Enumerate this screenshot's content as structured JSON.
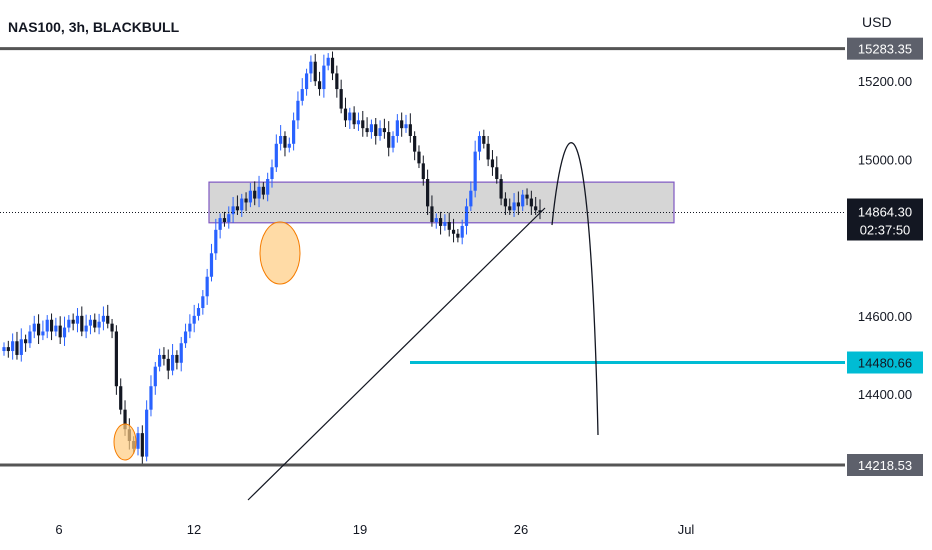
{
  "header": {
    "symbol": "NAS100, 3h, BLACKBULL",
    "currency": "USD"
  },
  "colors": {
    "up": "#2962ff",
    "down": "#131722",
    "zone_fill": "#d6d6d6",
    "zone_border": "#7e57c2",
    "target": "#00bcd4",
    "ellipse_fill": "#ffcc80",
    "ellipse_border": "#f57c00",
    "line": "#131722"
  },
  "chart_data": {
    "type": "candlestick",
    "y_axis": {
      "ticks": [
        "15200.00",
        "15000.00",
        "14600.00",
        "14400.00"
      ],
      "tick_values": [
        15200,
        15000,
        14600,
        14400
      ]
    },
    "x_axis": {
      "ticks": [
        "6",
        "12",
        "19",
        "26",
        "Jul"
      ]
    },
    "price_levels": [
      {
        "label": "15283.35",
        "value": 15283.35,
        "style": "resistance"
      },
      {
        "label": "14218.53",
        "value": 14218.53,
        "style": "support"
      },
      {
        "label": "14480.66",
        "value": 14480.66,
        "style": "target"
      }
    ],
    "current_price": {
      "label": "14864.30",
      "value": 14864.3,
      "countdown": "02:37:50"
    },
    "zone": {
      "top": 14942,
      "bottom": 14838
    },
    "closes": [
      14520,
      14510,
      14535,
      14500,
      14540,
      14530,
      14560,
      14580,
      14550,
      14560,
      14590,
      14560,
      14575,
      14545,
      14570,
      14590,
      14580,
      14600,
      14560,
      14575,
      14590,
      14570,
      14585,
      14600,
      14580,
      14560,
      14420,
      14360,
      14310,
      14280,
      14260,
      14300,
      14240,
      14360,
      14420,
      14470,
      14500,
      14490,
      14460,
      14500,
      14480,
      14530,
      14560,
      14580,
      14600,
      14620,
      14650,
      14700,
      14760,
      14820,
      14850,
      14840,
      14860,
      14880,
      14870,
      14900,
      14890,
      14920,
      14900,
      14930,
      14910,
      14950,
      14980,
      15040,
      15060,
      15030,
      15040,
      15100,
      15150,
      15180,
      15220,
      15250,
      15200,
      15180,
      15240,
      15260,
      15220,
      15180,
      15130,
      15100,
      15120,
      15090,
      15100,
      15080,
      15070,
      15090,
      15060,
      15080,
      15070,
      15030,
      15060,
      15100,
      15080,
      15090,
      15060,
      15020,
      14990,
      14950,
      14880,
      14840,
      14850,
      14830,
      14840,
      14820,
      14810,
      14800,
      14830,
      14880,
      14920,
      15020,
      15060,
      15040,
      15000,
      14980,
      14950,
      14900,
      14880,
      14870,
      14890,
      14880,
      14910,
      14900,
      14880,
      14870,
      14864.3
    ]
  }
}
